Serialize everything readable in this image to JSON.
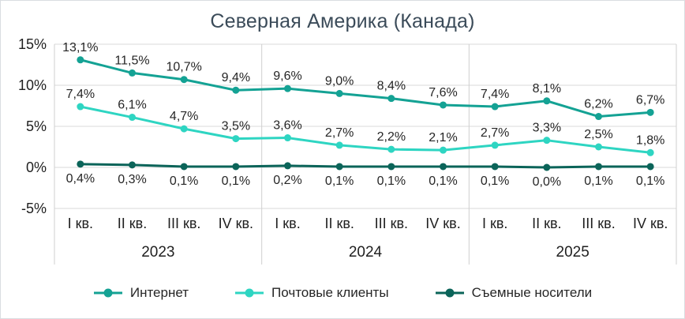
{
  "chart_data": {
    "type": "line",
    "title": "Северная Америка (Канада)",
    "categories": [
      "I кв.",
      "II кв.",
      "III кв.",
      "IV кв.",
      "I кв.",
      "II кв.",
      "III кв.",
      "IV кв.",
      "I кв.",
      "II кв.",
      "III кв.",
      "IV кв."
    ],
    "year_groups": [
      "2023",
      "2024",
      "2025"
    ],
    "ylim": [
      -5,
      15
    ],
    "yticks": [
      {
        "value": 15,
        "label": "15%"
      },
      {
        "value": 10,
        "label": "10%"
      },
      {
        "value": 5,
        "label": "5%"
      },
      {
        "value": 0,
        "label": "0%"
      },
      {
        "value": -5,
        "label": "-5%"
      }
    ],
    "grid": true,
    "legend_position": "bottom",
    "series": [
      {
        "name": "Интернет",
        "color": "#14A294",
        "marker": "circle",
        "label_position": "above",
        "values": [
          13.1,
          11.5,
          10.7,
          9.4,
          9.6,
          9.0,
          8.4,
          7.6,
          7.4,
          8.1,
          6.2,
          6.7
        ],
        "labels": [
          "13,1%",
          "11,5%",
          "10,7%",
          "9,4%",
          "9,6%",
          "9,0%",
          "8,4%",
          "7,6%",
          "7,4%",
          "8,1%",
          "6,2%",
          "6,7%"
        ]
      },
      {
        "name": "Почтовые клиенты",
        "color": "#2ED5C2",
        "marker": "circle",
        "label_position": "above",
        "values": [
          7.4,
          6.1,
          4.7,
          3.5,
          3.6,
          2.7,
          2.2,
          2.1,
          2.7,
          3.3,
          2.5,
          1.8
        ],
        "labels": [
          "7,4%",
          "6,1%",
          "4,7%",
          "3,5%",
          "3,6%",
          "2,7%",
          "2,2%",
          "2,1%",
          "2,7%",
          "3,3%",
          "2,5%",
          "1,8%"
        ]
      },
      {
        "name": "Съемные носители",
        "color": "#0B6459",
        "marker": "circle",
        "label_position": "below",
        "values": [
          0.4,
          0.3,
          0.1,
          0.1,
          0.2,
          0.1,
          0.1,
          0.1,
          0.1,
          0.0,
          0.1,
          0.1
        ],
        "labels": [
          "0,4%",
          "0,3%",
          "0,1%",
          "0,1%",
          "0,2%",
          "0,1%",
          "0,1%",
          "0,1%",
          "0,1%",
          "0,0%",
          "0,1%",
          "0,1%"
        ]
      }
    ],
    "colors": {
      "title": "#3B4B59",
      "axis_text": "#1f1f1f",
      "label_text": "#262626",
      "grid": "#d9d9d9",
      "boundary": "#cfcfcf"
    }
  }
}
